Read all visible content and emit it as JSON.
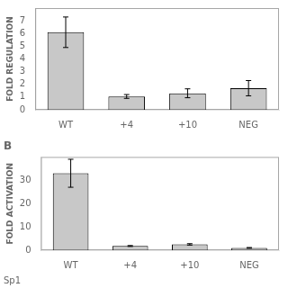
{
  "chart_data": [
    {
      "type": "bar",
      "categories": [
        "WT",
        "+4",
        "+10",
        "NEG"
      ],
      "values": [
        6.1,
        1.05,
        1.3,
        1.7
      ],
      "errors": [
        1.2,
        0.15,
        0.35,
        0.6
      ],
      "ylabel": "FOLD REGULATION",
      "ylim": [
        0,
        8
      ],
      "yticks": [
        0,
        1,
        2,
        3,
        4,
        5,
        6,
        7
      ],
      "color": "#c8c8c8",
      "grid": false
    },
    {
      "type": "bar",
      "title": "B",
      "annotation": "Sp1",
      "categories": [
        "WT",
        "+4",
        "+10",
        "NEG"
      ],
      "values": [
        33.0,
        1.8,
        2.5,
        1.0
      ],
      "errors": [
        6.0,
        0.2,
        0.3,
        0.15
      ],
      "ylabel": "FOLD ACTIVATION",
      "ylim": [
        0,
        40
      ],
      "yticks": [
        0,
        10,
        20,
        30
      ],
      "color": "#c8c8c8",
      "grid": false
    }
  ]
}
